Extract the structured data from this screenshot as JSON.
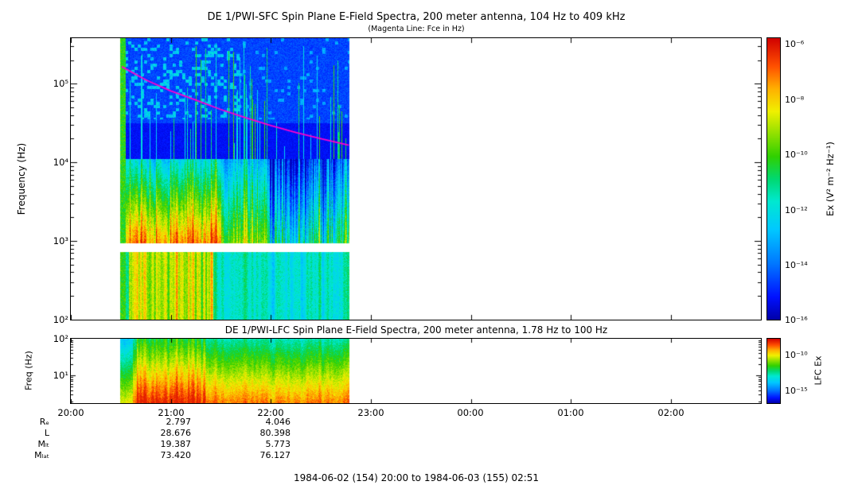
{
  "figure": {
    "caption": "1984-06-02 (154) 20:00 to 1984-06-03 (155) 02:51"
  },
  "ephemeris": {
    "rows": [
      {
        "label": "Rₑ",
        "values": [
          "2.797",
          "4.046"
        ]
      },
      {
        "label": "L",
        "values": [
          "28.676",
          "80.398"
        ]
      },
      {
        "label": "Mₗₜ",
        "values": [
          "19.387",
          "5.773"
        ]
      },
      {
        "label": "Mₗₐₜ",
        "values": [
          "73.420",
          "76.127"
        ]
      }
    ]
  },
  "chart_data": [
    {
      "type": "heatmap",
      "instrument": "DE 1/PWI-SFC",
      "title": "DE 1/PWI-SFC  Spin Plane E-Field Spectra, 200 meter antenna, 104 Hz to 409 kHz",
      "subtitle": "(Magenta Line: Fce in Hz)",
      "ylabel": "Frequency (Hz)",
      "y_ticks": [
        "10⁵",
        "10⁴",
        "10³",
        "10²"
      ],
      "y_log_range": [
        2,
        5.58
      ],
      "x_ticks": [
        "20:00",
        "21:00",
        "22:00",
        "23:00",
        "00:00",
        "01:00",
        "02:00"
      ],
      "x_range_hours": [
        0,
        6.9
      ],
      "data_time_range_hours": [
        0.494,
        2.781
      ],
      "gap_band_logf": [
        2.86,
        2.98
      ],
      "grid": false,
      "legend": "colorbar right",
      "colorbar": {
        "label": "Ex (V² m⁻² Hz⁻¹)",
        "ticks": [
          "10⁻⁶",
          "10⁻⁸",
          "10⁻¹⁰",
          "10⁻¹²",
          "10⁻¹⁴",
          "10⁻¹⁶"
        ],
        "log_range": [
          -16,
          -6
        ],
        "stops": [
          [
            0,
            "#0000a8"
          ],
          [
            0.08,
            "#0010ff"
          ],
          [
            0.2,
            "#0078ff"
          ],
          [
            0.32,
            "#00c8ff"
          ],
          [
            0.42,
            "#00e8d0"
          ],
          [
            0.5,
            "#00d870"
          ],
          [
            0.58,
            "#30d000"
          ],
          [
            0.66,
            "#90e000"
          ],
          [
            0.74,
            "#f0f000"
          ],
          [
            0.82,
            "#ffb000"
          ],
          [
            0.9,
            "#ff5000"
          ],
          [
            1,
            "#d00000"
          ]
        ]
      },
      "fce_line": {
        "label": "Fce",
        "color": "#ff00cc",
        "points_hours_hz": [
          [
            0.51,
            165000
          ],
          [
            0.75,
            112000
          ],
          [
            1.0,
            81000
          ],
          [
            1.25,
            62000
          ],
          [
            1.5,
            47000
          ],
          [
            1.75,
            37000
          ],
          [
            2.0,
            29500
          ],
          [
            2.25,
            24000
          ],
          [
            2.5,
            20000
          ],
          [
            2.78,
            16500
          ]
        ]
      }
    },
    {
      "type": "heatmap",
      "instrument": "DE 1/PWI-LFC",
      "title": "DE 1/PWI-LFC  Spin Plane E-Field Spectra, 200 meter antenna, 1.78 Hz to 100 Hz",
      "ylabel": "Freq (Hz)",
      "y_ticks": [
        "10²",
        "10¹"
      ],
      "y_log_range": [
        0.25,
        2
      ],
      "data_time_range_hours": [
        0.494,
        2.781
      ],
      "colorbar": {
        "label": "LFC Ex",
        "ticks": [
          "10⁻¹⁰",
          "10⁻¹⁵"
        ]
      }
    }
  ]
}
